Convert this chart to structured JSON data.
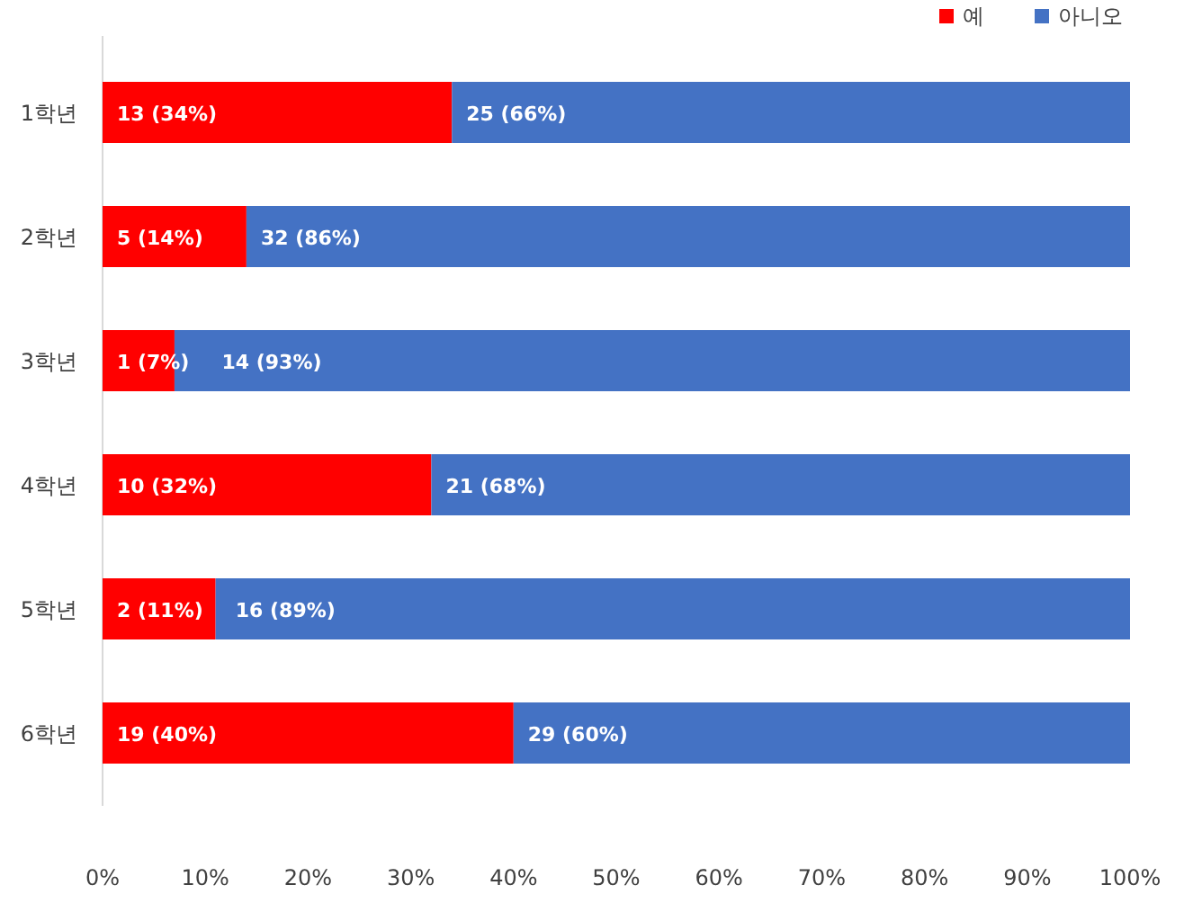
{
  "chart_data": {
    "type": "bar",
    "orientation": "horizontal",
    "stacked": true,
    "legend": "top right",
    "categories": [
      "1학년",
      "2학년",
      "3학년",
      "4학년",
      "5학년",
      "6학년"
    ],
    "series": [
      {
        "name": "예",
        "color": "#ff0000",
        "values": [
          34,
          14,
          7,
          32,
          11,
          40
        ],
        "value_labels": [
          "13 (34%)",
          "5 (14%)",
          "1 (7%)",
          "10 (32%)",
          "2 (11%)",
          "19 (40%)"
        ]
      },
      {
        "name": "아니오",
        "color": "#4472c4",
        "values": [
          66,
          86,
          93,
          68,
          89,
          60
        ],
        "value_labels": [
          "25 (66%)",
          "32 (86%)",
          "14 (93%)",
          "21 (68%)",
          "16 (89%)",
          "29 (60%)"
        ]
      }
    ],
    "xlim": [
      0,
      100
    ],
    "xticks": [
      {
        "value": 0,
        "label": "0%"
      },
      {
        "value": 10,
        "label": "10%"
      },
      {
        "value": 20,
        "label": "20%"
      },
      {
        "value": 30,
        "label": "30%"
      },
      {
        "value": 40,
        "label": "40%"
      },
      {
        "value": 50,
        "label": "50%"
      },
      {
        "value": 60,
        "label": "60%"
      },
      {
        "value": 70,
        "label": "70%"
      },
      {
        "value": 80,
        "label": "80%"
      },
      {
        "value": 90,
        "label": "90%"
      },
      {
        "value": 100,
        "label": "100%"
      }
    ]
  }
}
